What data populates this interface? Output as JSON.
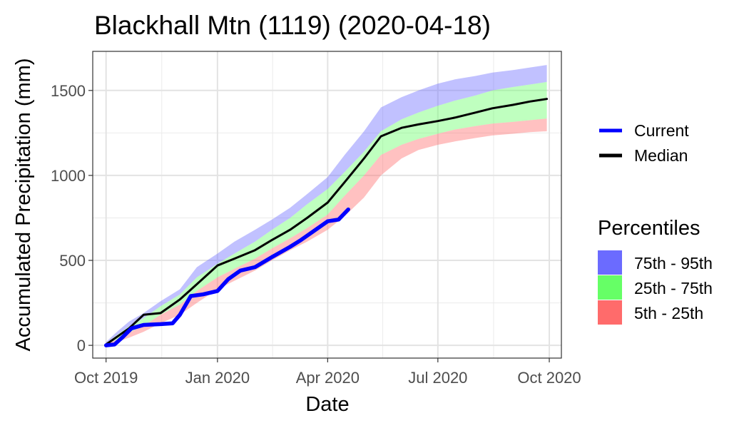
{
  "chart_data": {
    "type": "area",
    "title": "Blackhall Mtn (1119) (2020-04-18)",
    "xlabel": "Date",
    "ylabel": "Accumulated Precipitation (mm)",
    "x_ticks": [
      "Oct 2019",
      "Jan 2020",
      "Apr 2020",
      "Jul 2020",
      "Oct 2020"
    ],
    "y_ticks": [
      "0",
      "500",
      "1000",
      "1500"
    ],
    "xlim": [
      "2019-09-20",
      "2020-10-11"
    ],
    "ylim": [
      -75,
      1730
    ],
    "grid": true,
    "legend_placement": "right",
    "legend_lines_title": "",
    "legend_fill_title": "Percentiles",
    "bands": [
      {
        "name": "75th - 95th",
        "color": "#6b6bff",
        "lower": "p75",
        "upper": "p95"
      },
      {
        "name": "25th - 75th",
        "color": "#66ff66",
        "lower": "p25",
        "upper": "p75"
      },
      {
        "name": "5th - 25th",
        "color": "#ff6b6b",
        "lower": "p5",
        "upper": "p25"
      }
    ],
    "percentile_series": {
      "x": [
        "2019-10-01",
        "2019-10-10",
        "2019-10-20",
        "2019-11-01",
        "2019-11-15",
        "2019-12-01",
        "2019-12-15",
        "2020-01-01",
        "2020-01-15",
        "2020-02-01",
        "2020-02-15",
        "2020-03-01",
        "2020-03-15",
        "2020-04-01",
        "2020-04-15",
        "2020-05-01",
        "2020-05-15",
        "2020-06-01",
        "2020-06-15",
        "2020-07-01",
        "2020-07-15",
        "2020-08-01",
        "2020-08-15",
        "2020-09-01",
        "2020-09-15",
        "2020-09-29"
      ],
      "p5": [
        0,
        20,
        45,
        80,
        130,
        180,
        250,
        330,
        380,
        440,
        500,
        560,
        610,
        680,
        760,
        870,
        1000,
        1100,
        1150,
        1180,
        1200,
        1220,
        1235,
        1245,
        1255,
        1260
      ],
      "p25": [
        5,
        35,
        75,
        115,
        180,
        240,
        320,
        400,
        450,
        510,
        570,
        630,
        690,
        770,
        880,
        1000,
        1120,
        1180,
        1215,
        1245,
        1270,
        1290,
        1305,
        1315,
        1325,
        1335
      ],
      "p75": [
        10,
        60,
        110,
        160,
        230,
        300,
        400,
        480,
        540,
        610,
        680,
        750,
        830,
        920,
        1020,
        1140,
        1260,
        1330,
        1370,
        1410,
        1440,
        1470,
        1500,
        1520,
        1535,
        1550
      ],
      "p95": [
        20,
        80,
        140,
        190,
        260,
        330,
        460,
        540,
        610,
        680,
        740,
        810,
        890,
        990,
        1120,
        1260,
        1400,
        1460,
        1500,
        1540,
        1565,
        1585,
        1605,
        1620,
        1635,
        1650
      ]
    },
    "series": [
      {
        "name": "Median",
        "color": "#000000",
        "x": [
          "2019-10-01",
          "2019-10-10",
          "2019-10-20",
          "2019-11-01",
          "2019-11-15",
          "2019-12-01",
          "2019-12-15",
          "2020-01-01",
          "2020-01-15",
          "2020-02-01",
          "2020-02-15",
          "2020-03-01",
          "2020-03-15",
          "2020-04-01",
          "2020-04-15",
          "2020-05-01",
          "2020-05-15",
          "2020-06-01",
          "2020-06-15",
          "2020-07-01",
          "2020-07-15",
          "2020-08-01",
          "2020-08-15",
          "2020-09-01",
          "2020-09-15",
          "2020-09-29"
        ],
        "values": [
          5,
          50,
          100,
          180,
          190,
          270,
          360,
          470,
          510,
          560,
          620,
          680,
          750,
          840,
          960,
          1100,
          1230,
          1280,
          1300,
          1320,
          1340,
          1370,
          1395,
          1415,
          1435,
          1450
        ]
      },
      {
        "name": "Current",
        "color": "#0000ff",
        "x": [
          "2019-10-01",
          "2019-10-08",
          "2019-10-15",
          "2019-10-22",
          "2019-11-01",
          "2019-11-15",
          "2019-11-25",
          "2019-12-01",
          "2019-12-10",
          "2019-12-20",
          "2020-01-01",
          "2020-01-10",
          "2020-01-20",
          "2020-02-01",
          "2020-02-15",
          "2020-03-01",
          "2020-03-10",
          "2020-03-20",
          "2020-04-01",
          "2020-04-10",
          "2020-04-18"
        ],
        "values": [
          0,
          5,
          50,
          100,
          120,
          125,
          130,
          180,
          290,
          300,
          320,
          390,
          440,
          460,
          520,
          580,
          620,
          670,
          730,
          740,
          800
        ]
      }
    ]
  }
}
